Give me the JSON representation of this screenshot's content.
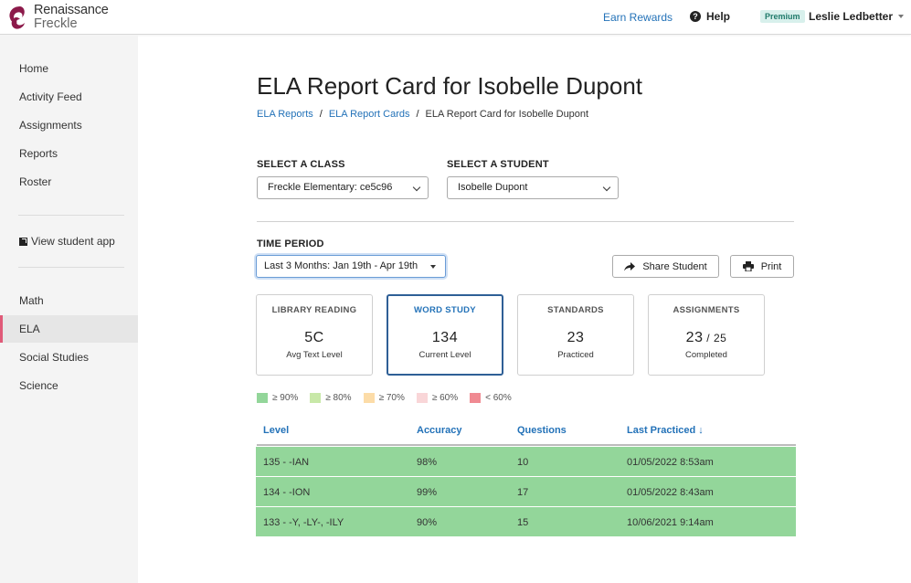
{
  "header": {
    "logo_line1": "Renaissance",
    "logo_line2": "Freckle",
    "earn_rewards": "Earn Rewards",
    "help": "Help",
    "premium_badge": "Premium",
    "user_name": "Leslie Ledbetter"
  },
  "sidebar": {
    "items": [
      "Home",
      "Activity Feed",
      "Assignments",
      "Reports",
      "Roster"
    ],
    "view_student_app": "View student app",
    "subjects": [
      "Math",
      "ELA",
      "Social Studies",
      "Science"
    ],
    "active_subject": "ELA"
  },
  "page": {
    "title": "ELA Report Card for Isobelle Dupont",
    "breadcrumb": [
      "ELA Reports",
      "ELA Report Cards",
      "ELA Report Card for Isobelle Dupont"
    ]
  },
  "filters": {
    "class_label": "SELECT A CLASS",
    "class_value": "Freckle Elementary: ce5c96",
    "student_label": "SELECT A STUDENT",
    "student_value": "Isobelle Dupont",
    "period_label": "TIME PERIOD",
    "period_value": "Last 3 Months: Jan 19th - Apr 19th"
  },
  "actions": {
    "share": "Share Student",
    "print": "Print"
  },
  "cards": [
    {
      "title": "LIBRARY READING",
      "value": "5C",
      "value_suffix": "",
      "sub": "Avg Text Level"
    },
    {
      "title": "WORD STUDY",
      "value": "134",
      "value_suffix": "",
      "sub": "Current Level"
    },
    {
      "title": "STANDARDS",
      "value": "23",
      "value_suffix": "",
      "sub": "Practiced"
    },
    {
      "title": "ASSIGNMENTS",
      "value": "23",
      "value_suffix": " / 25",
      "sub": "Completed"
    }
  ],
  "legend": [
    {
      "label": "≥ 90%",
      "color": "#93d69a"
    },
    {
      "label": "≥ 80%",
      "color": "#c8e8a8"
    },
    {
      "label": "≥ 70%",
      "color": "#fcdca8"
    },
    {
      "label": "≥ 60%",
      "color": "#f9d6d8"
    },
    {
      "label": "< 60%",
      "color": "#f08a92"
    }
  ],
  "table": {
    "columns": [
      "Level",
      "Accuracy",
      "Questions",
      "Last Practiced ↓"
    ],
    "rows": [
      [
        "135 - -IAN",
        "98%",
        "10",
        "01/05/2022 8:53am"
      ],
      [
        "134 - -ION",
        "99%",
        "17",
        "01/05/2022 8:43am"
      ],
      [
        "133 - -Y, -LY-, -ILY",
        "90%",
        "15",
        "10/06/2021 9:14am"
      ]
    ]
  },
  "colors": {
    "accent": "#2372b8",
    "brand": "#8c1a4a",
    "active_nav_bar": "#e05a78",
    "row_green": "#93d69a"
  }
}
